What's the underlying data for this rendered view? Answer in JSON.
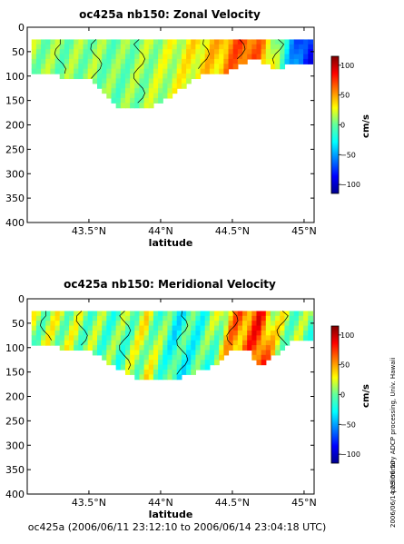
{
  "footer": "oc425a (2006/06/11 23:12:10 to 2006/06/14 23:04:18 UTC)",
  "side_credit": "preliminary ADCP processing,   Univ. Hawaii",
  "side_timestamp": "2006/06/14 23:06:50",
  "colors": {
    "axis": "#000000",
    "background": "#ffffff"
  },
  "chart_data": [
    {
      "type": "heatmap",
      "title": "oc425a nb150: Zonal Velocity",
      "xlabel": "latitude",
      "x_ticks": [
        43.5,
        44.0,
        44.5,
        45.0
      ],
      "x_tick_labels": [
        "43.5°N",
        "44°N",
        "44.5°N",
        "45°N"
      ],
      "xlim": [
        43.07,
        45.07
      ],
      "y_ticks": [
        0,
        50,
        100,
        150,
        200,
        250,
        300,
        350,
        400
      ],
      "y_tick_labels": [
        "0",
        "50",
        "100",
        "150",
        "200",
        "250",
        "300",
        "350",
        "400"
      ],
      "ylim": [
        0,
        400
      ],
      "y_inverted": true,
      "colorbar": {
        "label": "cm/s",
        "ticks": [
          -100,
          -50,
          0,
          50,
          100
        ],
        "tick_labels": [
          "−100",
          "−50",
          "0",
          "50",
          "100"
        ],
        "range": [
          -115,
          115
        ],
        "colormap": "jet"
      },
      "approx_field": {
        "lat": [
          43.1,
          43.3,
          43.5,
          43.7,
          43.9,
          44.1,
          44.3,
          44.4,
          44.5,
          44.6,
          44.7,
          44.8,
          44.9,
          45.0
        ],
        "max_depth": [
          95,
          95,
          100,
          155,
          165,
          130,
          90,
          95,
          80,
          65,
          65,
          85,
          70,
          70
        ],
        "velocity_cm_s": [
          10,
          5,
          8,
          2,
          10,
          20,
          35,
          40,
          60,
          70,
          55,
          15,
          -40,
          -80
        ]
      }
    },
    {
      "type": "heatmap",
      "title": "oc425a nb150: Meridional Velocity",
      "xlabel": "latitude",
      "x_ticks": [
        43.5,
        44.0,
        44.5,
        45.0
      ],
      "x_tick_labels": [
        "43.5°N",
        "44°N",
        "44.5°N",
        "45°N"
      ],
      "xlim": [
        43.07,
        45.07
      ],
      "y_ticks": [
        0,
        50,
        100,
        150,
        200,
        250,
        300,
        350,
        400
      ],
      "y_tick_labels": [
        "0",
        "50",
        "100",
        "150",
        "200",
        "250",
        "300",
        "350",
        "400"
      ],
      "ylim": [
        0,
        400
      ],
      "y_inverted": true,
      "colorbar": {
        "label": "cm/s",
        "ticks": [
          -100,
          -50,
          0,
          50,
          100
        ],
        "tick_labels": [
          "−100",
          "−50",
          "0",
          "50",
          "100"
        ],
        "range": [
          -115,
          115
        ],
        "colormap": "jet"
      },
      "approx_field": {
        "lat": [
          43.1,
          43.3,
          43.5,
          43.7,
          43.9,
          44.1,
          44.3,
          44.4,
          44.5,
          44.6,
          44.7,
          44.8,
          44.9,
          45.0
        ],
        "max_depth": [
          85,
          95,
          100,
          140,
          165,
          160,
          140,
          130,
          100,
          95,
          135,
          110,
          85,
          80
        ],
        "velocity_cm_s": [
          10,
          15,
          5,
          -5,
          20,
          -20,
          -10,
          10,
          50,
          60,
          75,
          20,
          10,
          0
        ]
      }
    }
  ]
}
